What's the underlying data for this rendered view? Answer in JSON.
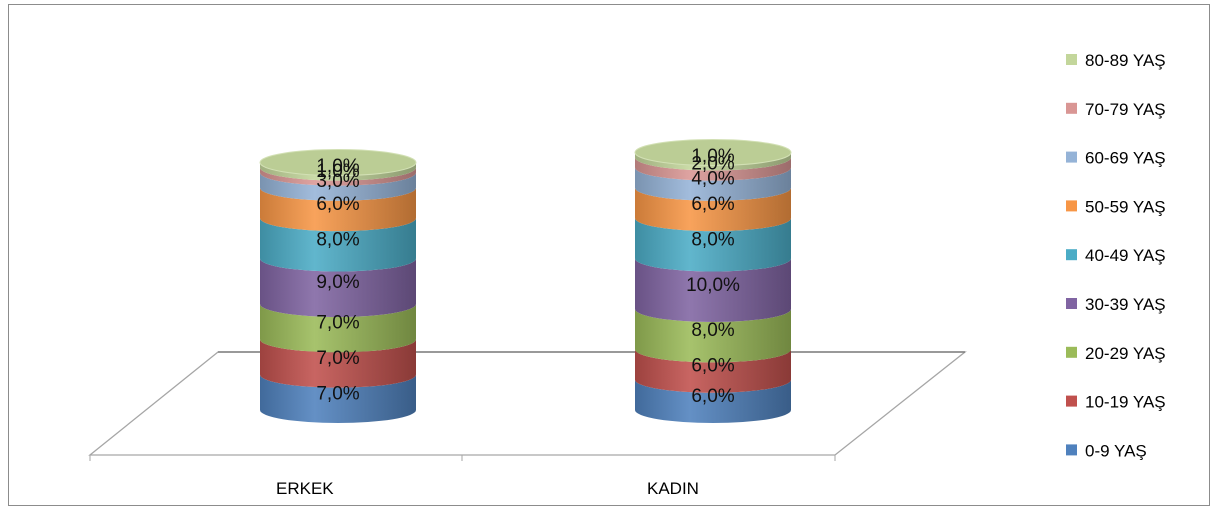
{
  "chart_data": {
    "type": "bar",
    "stacked": true,
    "style": "3d-cylinder",
    "categories": [
      "ERKEK",
      "KADIN"
    ],
    "series": [
      {
        "name": "0-9 YAŞ",
        "color": "#4f81bd",
        "values": [
          7.0,
          6.0
        ],
        "labels": [
          "7,0%",
          "6,0%"
        ]
      },
      {
        "name": "10-19 YAŞ",
        "color": "#c0504d",
        "values": [
          7.0,
          6.0
        ],
        "labels": [
          "7,0%",
          "6,0%"
        ]
      },
      {
        "name": "20-29 YAŞ",
        "color": "#9bbb59",
        "values": [
          7.0,
          8.0
        ],
        "labels": [
          "7,0%",
          "8,0%"
        ]
      },
      {
        "name": "30-39 YAŞ",
        "color": "#8064a2",
        "values": [
          9.0,
          10.0
        ],
        "labels": [
          "9,0%",
          "10,0%"
        ]
      },
      {
        "name": "40-49 YAŞ",
        "color": "#4bacc6",
        "values": [
          8.0,
          8.0
        ],
        "labels": [
          "8,0%",
          "8,0%"
        ]
      },
      {
        "name": "50-59 YAŞ",
        "color": "#f79646",
        "values": [
          6.0,
          6.0
        ],
        "labels": [
          "6,0%",
          "6,0%"
        ]
      },
      {
        "name": "60-69 YAŞ",
        "color": "#95b3d7",
        "values": [
          3.0,
          4.0
        ],
        "labels": [
          "3,0%",
          "4,0%"
        ]
      },
      {
        "name": "70-79 YAŞ",
        "color": "#d99694",
        "values": [
          1.0,
          2.0
        ],
        "labels": [
          "1,0%",
          "2,0%"
        ]
      },
      {
        "name": "80-89 YAŞ",
        "color": "#c3d69b",
        "values": [
          1.0,
          1.0
        ],
        "labels": [
          "1,0%",
          "1,0%"
        ]
      }
    ],
    "legend_position": "right",
    "grid": false,
    "title": "",
    "xlabel": "",
    "ylabel": ""
  }
}
